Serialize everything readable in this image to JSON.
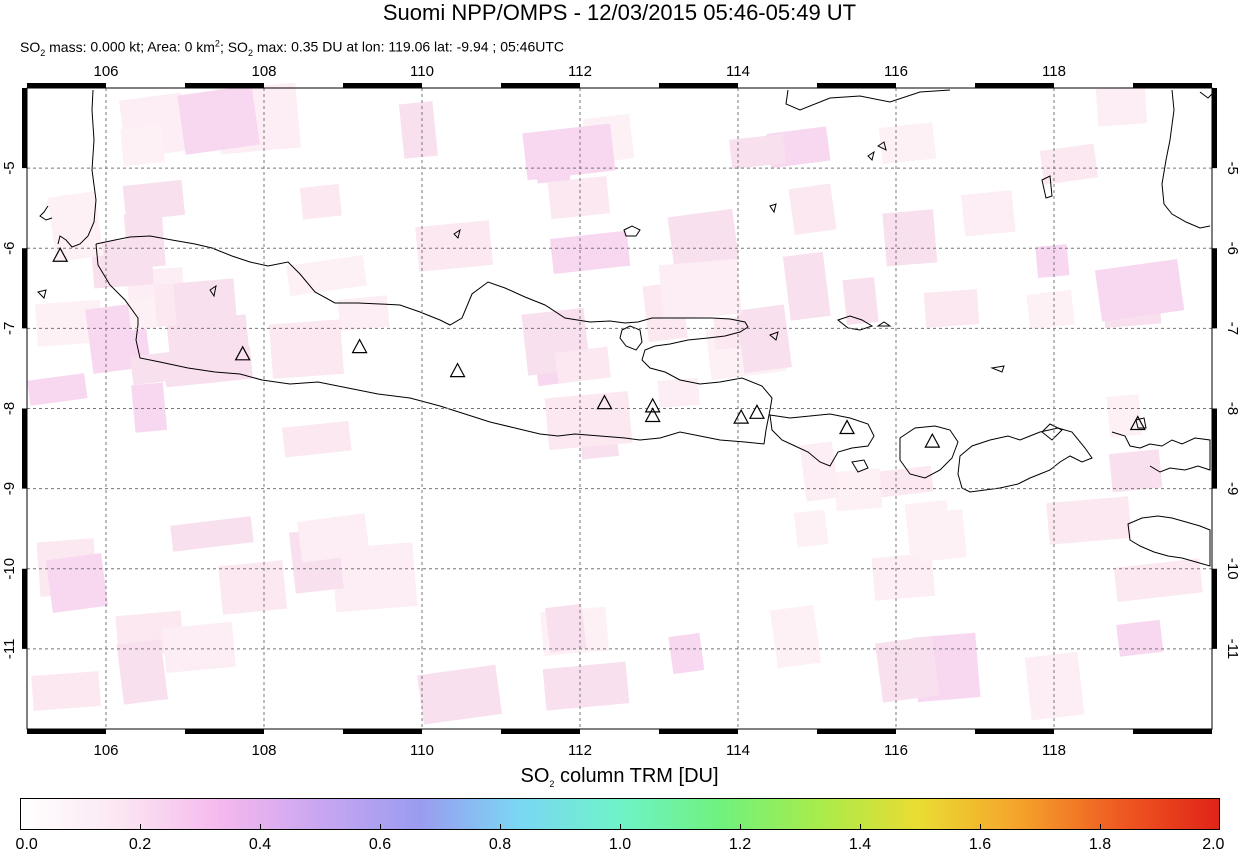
{
  "header": {
    "title": "Suomi NPP/OMPS - 12/03/2015 05:46-05:49 UT",
    "so2_mass": "0.000",
    "area": "0",
    "so2_max": "0.35",
    "lon": "119.06",
    "lat": "-9.94",
    "time_utc": "05:46UTC"
  },
  "map": {
    "lon_range": [
      105.0,
      120.0
    ],
    "lat_range": [
      -12.0,
      -4.0
    ],
    "lon_ticks": [
      "106",
      "108",
      "110",
      "112",
      "114",
      "116",
      "118"
    ],
    "lat_ticks": [
      "-5",
      "-6",
      "-7",
      "-8",
      "-9",
      "-10",
      "-11"
    ],
    "volcanoes": [
      {
        "lon": 105.42,
        "lat": -6.1
      },
      {
        "lon": 107.73,
        "lat": -7.33
      },
      {
        "lon": 109.21,
        "lat": -7.24
      },
      {
        "lon": 110.45,
        "lat": -7.54
      },
      {
        "lon": 112.31,
        "lat": -7.94
      },
      {
        "lon": 112.92,
        "lat": -7.98
      },
      {
        "lon": 112.92,
        "lat": -8.1
      },
      {
        "lon": 114.04,
        "lat": -8.12
      },
      {
        "lon": 114.24,
        "lat": -8.06
      },
      {
        "lon": 115.38,
        "lat": -8.25
      },
      {
        "lon": 116.46,
        "lat": -8.42
      },
      {
        "lon": 119.06,
        "lat": -8.2
      }
    ]
  },
  "colorbar": {
    "title_main": "SO",
    "title_sub": "2",
    "title_rest": " column TRM [DU]",
    "ticks": [
      "0.0",
      "0.2",
      "0.4",
      "0.6",
      "0.8",
      "1.0",
      "1.2",
      "1.4",
      "1.6",
      "1.8",
      "2.0"
    ],
    "colors": [
      "#ffffff",
      "#fbe6f2",
      "#f5b8ee",
      "#c9a6f1",
      "#9a9cf0",
      "#7ad7f3",
      "#6ff2c8",
      "#6ff27e",
      "#a8ec4a",
      "#eadc33",
      "#f5a32b",
      "#ef5a22",
      "#e02418"
    ]
  }
}
